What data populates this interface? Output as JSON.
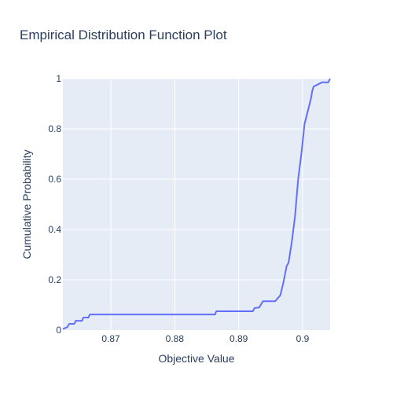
{
  "chart_data": {
    "type": "line",
    "title": "Empirical Distribution Function Plot",
    "xlabel": "Objective Value",
    "ylabel": "Cumulative Probability",
    "xlim": [
      0.8625,
      0.9043
    ],
    "ylim": [
      0,
      1
    ],
    "x_ticks": [
      0.87,
      0.88,
      0.89,
      0.9
    ],
    "x_tick_labels": [
      "0.87",
      "0.88",
      "0.89",
      "0.9"
    ],
    "y_ticks": [
      0,
      0.2,
      0.4,
      0.6,
      0.8,
      1
    ],
    "y_tick_labels": [
      "0",
      "0.2",
      "0.4",
      "0.6",
      "0.8",
      "1"
    ],
    "grid": true,
    "colors": {
      "plot_bg": "#e5ecf6",
      "line": "#636efa",
      "grid": "#ffffff",
      "text": "#2a3f5f"
    },
    "series": [
      {
        "x": [
          0.8625,
          0.8632,
          0.8635,
          0.8643,
          0.8645,
          0.8655,
          0.8657,
          0.8665,
          0.8667,
          0.8863,
          0.8865,
          0.8922,
          0.8925,
          0.8932,
          0.8938,
          0.8957,
          0.8965,
          0.897,
          0.8975,
          0.8978,
          0.8983,
          0.8988,
          0.8993,
          0.8998,
          0.9003,
          0.9008,
          0.9013,
          0.9015,
          0.9017,
          0.903,
          0.904,
          0.9043
        ],
        "y": [
          0.005,
          0.012,
          0.025,
          0.025,
          0.037,
          0.037,
          0.05,
          0.05,
          0.062,
          0.062,
          0.075,
          0.075,
          0.088,
          0.09,
          0.115,
          0.115,
          0.138,
          0.19,
          0.255,
          0.268,
          0.35,
          0.45,
          0.6,
          0.7,
          0.82,
          0.87,
          0.92,
          0.95,
          0.968,
          0.985,
          0.985,
          1.0
        ]
      }
    ]
  }
}
